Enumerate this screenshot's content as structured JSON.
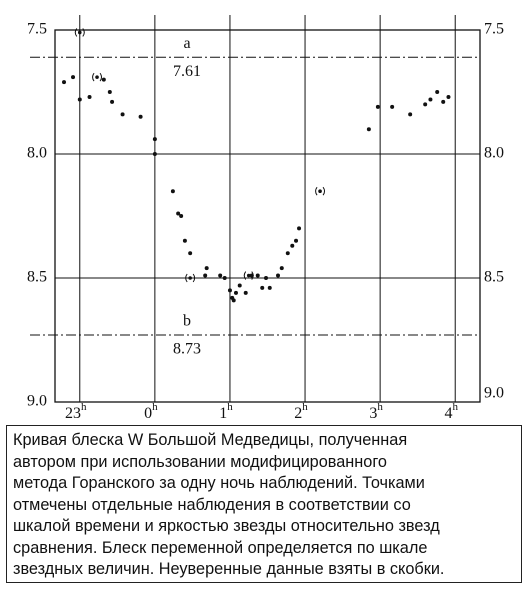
{
  "chart_data": {
    "type": "scatter",
    "xlim": [
      -1.33,
      4.33
    ],
    "ylim": [
      7.5,
      9.0
    ],
    "invert_y": true,
    "xticks": [
      {
        "value": -1,
        "label": "23h"
      },
      {
        "value": 0,
        "label": "0h"
      },
      {
        "value": 1,
        "label": "1h"
      },
      {
        "value": 2,
        "label": "2h"
      },
      {
        "value": 3,
        "label": "3h"
      },
      {
        "value": 4,
        "label": "4h"
      }
    ],
    "yticks": [
      7.5,
      {
        "value": 8,
        "label": "8.0"
      },
      8.5,
      {
        "value": 9,
        "label": "9.0"
      }
    ],
    "grid": true,
    "color": "#111111",
    "reference_lines": [
      {
        "label": "a",
        "value": 7.61
      },
      {
        "label": "b",
        "value": 8.73
      }
    ],
    "points": {
      "x": [
        -1.21,
        -1.09,
        -1.0,
        -0.87,
        -0.68,
        -0.6,
        -0.57,
        -0.43,
        -0.19,
        0,
        0,
        0.24,
        0.31,
        0.35,
        0.4,
        0.47,
        0.67,
        0.69,
        0.87,
        0.93,
        1.0,
        1.03,
        1.05,
        1.08,
        1.13,
        1.21,
        1.29,
        1.37,
        1.43,
        1.48,
        1.53,
        1.64,
        1.69,
        1.77,
        1.83,
        1.88,
        1.92,
        2.85,
        2.97,
        3.16,
        3.4,
        3.6,
        3.67,
        3.76,
        3.84,
        3.91
      ],
      "y": [
        7.71,
        7.69,
        7.78,
        7.77,
        7.7,
        7.75,
        7.79,
        7.84,
        7.85,
        7.94,
        8.0,
        8.15,
        8.24,
        8.25,
        8.35,
        8.4,
        8.49,
        8.46,
        8.49,
        8.5,
        8.55,
        8.58,
        8.59,
        8.56,
        8.53,
        8.56,
        8.49,
        8.49,
        8.54,
        8.5,
        8.54,
        8.49,
        8.46,
        8.4,
        8.37,
        8.35,
        8.3,
        7.9,
        7.81,
        7.81,
        7.84,
        7.8,
        7.78,
        7.75,
        7.79,
        7.77
      ]
    },
    "uncertain_points": {
      "x": [
        -1.0,
        -0.77,
        0.47,
        1.25,
        2.2
      ],
      "y": [
        7.51,
        7.69,
        8.5,
        8.49,
        8.15
      ]
    }
  },
  "caption": [
    "Кривая блеска W Большой Медведицы, полученная",
    "автором при использовании модифицированного",
    "метода Горанского за одну ночь наблюдений. Точками",
    "отмечены отдельные наблюдения в соответствии со",
    "шкалой времени и яркостью звезды относительно звезд",
    "сравнения. Блеск переменной определяется по шкале",
    "звездных величин. Неуверенные данные взяты в скобки."
  ]
}
